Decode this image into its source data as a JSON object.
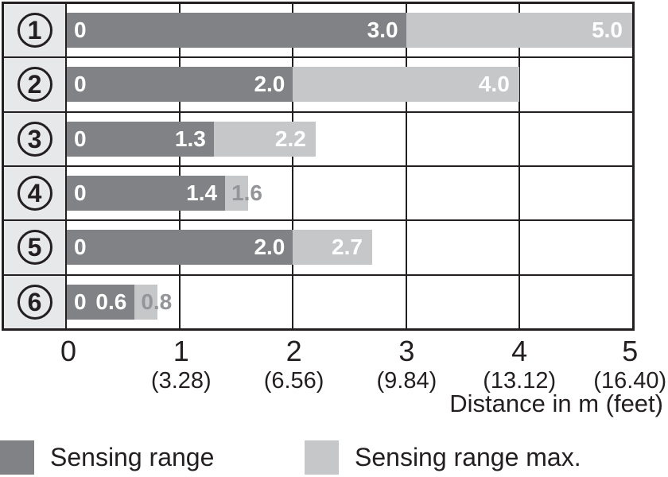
{
  "colors": {
    "sensing_range": "#808285",
    "sensing_range_max": "#c6c7c9",
    "label_column_bg": "#e7e8e9",
    "border_and_text": "#231f20",
    "bar_value_text_inside": "#ffffff",
    "bar_value_text_outside": "#939598"
  },
  "chart_data": {
    "type": "bar",
    "orientation": "horizontal",
    "title": "",
    "xlabel": "Distance in m (feet)",
    "ylabel": "",
    "xlim": [
      0,
      5
    ],
    "grid": true,
    "legend_position": "bottom",
    "categories": [
      "1",
      "2",
      "3",
      "4",
      "5",
      "6"
    ],
    "series": [
      {
        "name": "Sensing range",
        "color": "#808285",
        "values": [
          3.0,
          2.0,
          1.3,
          1.4,
          2.0,
          0.6
        ]
      },
      {
        "name": "Sensing range max.",
        "color": "#c6c7c9",
        "values": [
          5.0,
          4.0,
          2.2,
          1.6,
          2.7,
          0.8
        ]
      }
    ],
    "rows": [
      {
        "category": "1",
        "zero_label": "0",
        "sensing": 3.0,
        "sensing_label": "3.0",
        "max": 5.0,
        "max_label": "5.0"
      },
      {
        "category": "2",
        "zero_label": "0",
        "sensing": 2.0,
        "sensing_label": "2.0",
        "max": 4.0,
        "max_label": "4.0"
      },
      {
        "category": "3",
        "zero_label": "0",
        "sensing": 1.3,
        "sensing_label": "1.3",
        "max": 2.2,
        "max_label": "2.2"
      },
      {
        "category": "4",
        "zero_label": "0",
        "sensing": 1.4,
        "sensing_label": "1.4",
        "max": 1.6,
        "max_label": "1.6"
      },
      {
        "category": "5",
        "zero_label": "0",
        "sensing": 2.0,
        "sensing_label": "2.0",
        "max": 2.7,
        "max_label": "2.7"
      },
      {
        "category": "6",
        "zero_label": "0",
        "sensing": 0.6,
        "sensing_label": "0.6",
        "max": 0.8,
        "max_label": "0.8"
      }
    ],
    "x_ticks": [
      {
        "m": "0",
        "feet": ""
      },
      {
        "m": "1",
        "feet": "(3.28)"
      },
      {
        "m": "2",
        "feet": "(6.56)"
      },
      {
        "m": "3",
        "feet": "(9.84)"
      },
      {
        "m": "4",
        "feet": "(13.12)"
      },
      {
        "m": "5",
        "feet": "(16.40)"
      }
    ],
    "legend": [
      {
        "label": "Sensing range",
        "color": "#808285"
      },
      {
        "label": "Sensing range max.",
        "color": "#c6c7c9"
      }
    ]
  }
}
